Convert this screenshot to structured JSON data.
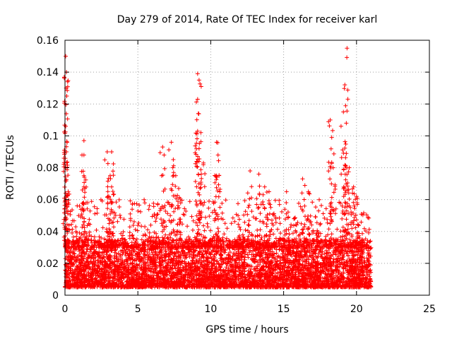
{
  "chart_data": {
    "type": "scatter",
    "title": "Day 279 of 2014, Rate Of TEC Index for receiver karl",
    "xlabel": "GPS time / hours",
    "ylabel": "ROTI / TECUs",
    "xlim": [
      0,
      25
    ],
    "ylim": [
      0,
      0.16
    ],
    "xticks": [
      0,
      5,
      10,
      15,
      20,
      25
    ],
    "yticks": [
      0,
      0.02,
      0.04,
      0.06,
      0.08,
      0.1,
      0.12,
      0.14,
      0.16
    ],
    "xtick_labels": [
      "0",
      "5",
      "10",
      "15",
      "20",
      "25"
    ],
    "ytick_labels": [
      "0",
      "0.02",
      "0.04",
      "0.06",
      "0.08",
      "0.1",
      "0.12",
      "0.14",
      "0.16"
    ],
    "grid": true,
    "marker": "+",
    "color": "#ff0000",
    "data_range_x": [
      0,
      21
    ],
    "baseline_y_range": [
      0.005,
      0.035
    ],
    "spikes": [
      {
        "x": 0.05,
        "y": 0.15
      },
      {
        "x": 0.1,
        "y": 0.14
      },
      {
        "x": 0.08,
        "y": 0.13
      },
      {
        "x": 0.12,
        "y": 0.125
      },
      {
        "x": 0.05,
        "y": 0.106
      },
      {
        "x": 0.1,
        "y": 0.09
      },
      {
        "x": 0.05,
        "y": 0.08
      },
      {
        "x": 0.05,
        "y": 0.064
      },
      {
        "x": 1.3,
        "y": 0.097
      },
      {
        "x": 1.3,
        "y": 0.088
      },
      {
        "x": 1.3,
        "y": 0.075
      },
      {
        "x": 1.3,
        "y": 0.068
      },
      {
        "x": 2.9,
        "y": 0.09
      },
      {
        "x": 3.2,
        "y": 0.09
      },
      {
        "x": 3.1,
        "y": 0.075
      },
      {
        "x": 3.2,
        "y": 0.068
      },
      {
        "x": 3.0,
        "y": 0.062
      },
      {
        "x": 6.7,
        "y": 0.093
      },
      {
        "x": 6.8,
        "y": 0.088
      },
      {
        "x": 7.3,
        "y": 0.096
      },
      {
        "x": 7.4,
        "y": 0.08
      },
      {
        "x": 7.6,
        "y": 0.075
      },
      {
        "x": 7.8,
        "y": 0.067
      },
      {
        "x": 9.1,
        "y": 0.139
      },
      {
        "x": 9.2,
        "y": 0.135
      },
      {
        "x": 9.1,
        "y": 0.123
      },
      {
        "x": 9.15,
        "y": 0.114
      },
      {
        "x": 9.1,
        "y": 0.103
      },
      {
        "x": 9.2,
        "y": 0.092
      },
      {
        "x": 9.5,
        "y": 0.083
      },
      {
        "x": 10.4,
        "y": 0.096
      },
      {
        "x": 10.5,
        "y": 0.088
      },
      {
        "x": 10.4,
        "y": 0.075
      },
      {
        "x": 12.7,
        "y": 0.078
      },
      {
        "x": 13.3,
        "y": 0.076
      },
      {
        "x": 13.7,
        "y": 0.068
      },
      {
        "x": 14.0,
        "y": 0.065
      },
      {
        "x": 15.2,
        "y": 0.065
      },
      {
        "x": 16.3,
        "y": 0.073
      },
      {
        "x": 16.7,
        "y": 0.065
      },
      {
        "x": 18.2,
        "y": 0.11
      },
      {
        "x": 18.3,
        "y": 0.099
      },
      {
        "x": 18.4,
        "y": 0.08
      },
      {
        "x": 19.1,
        "y": 0.115
      },
      {
        "x": 19.3,
        "y": 0.108
      },
      {
        "x": 19.2,
        "y": 0.132
      },
      {
        "x": 19.35,
        "y": 0.155
      },
      {
        "x": 19.3,
        "y": 0.089
      },
      {
        "x": 19.5,
        "y": 0.08
      },
      {
        "x": 19.8,
        "y": 0.068
      },
      {
        "x": 20.0,
        "y": 0.062
      }
    ]
  }
}
